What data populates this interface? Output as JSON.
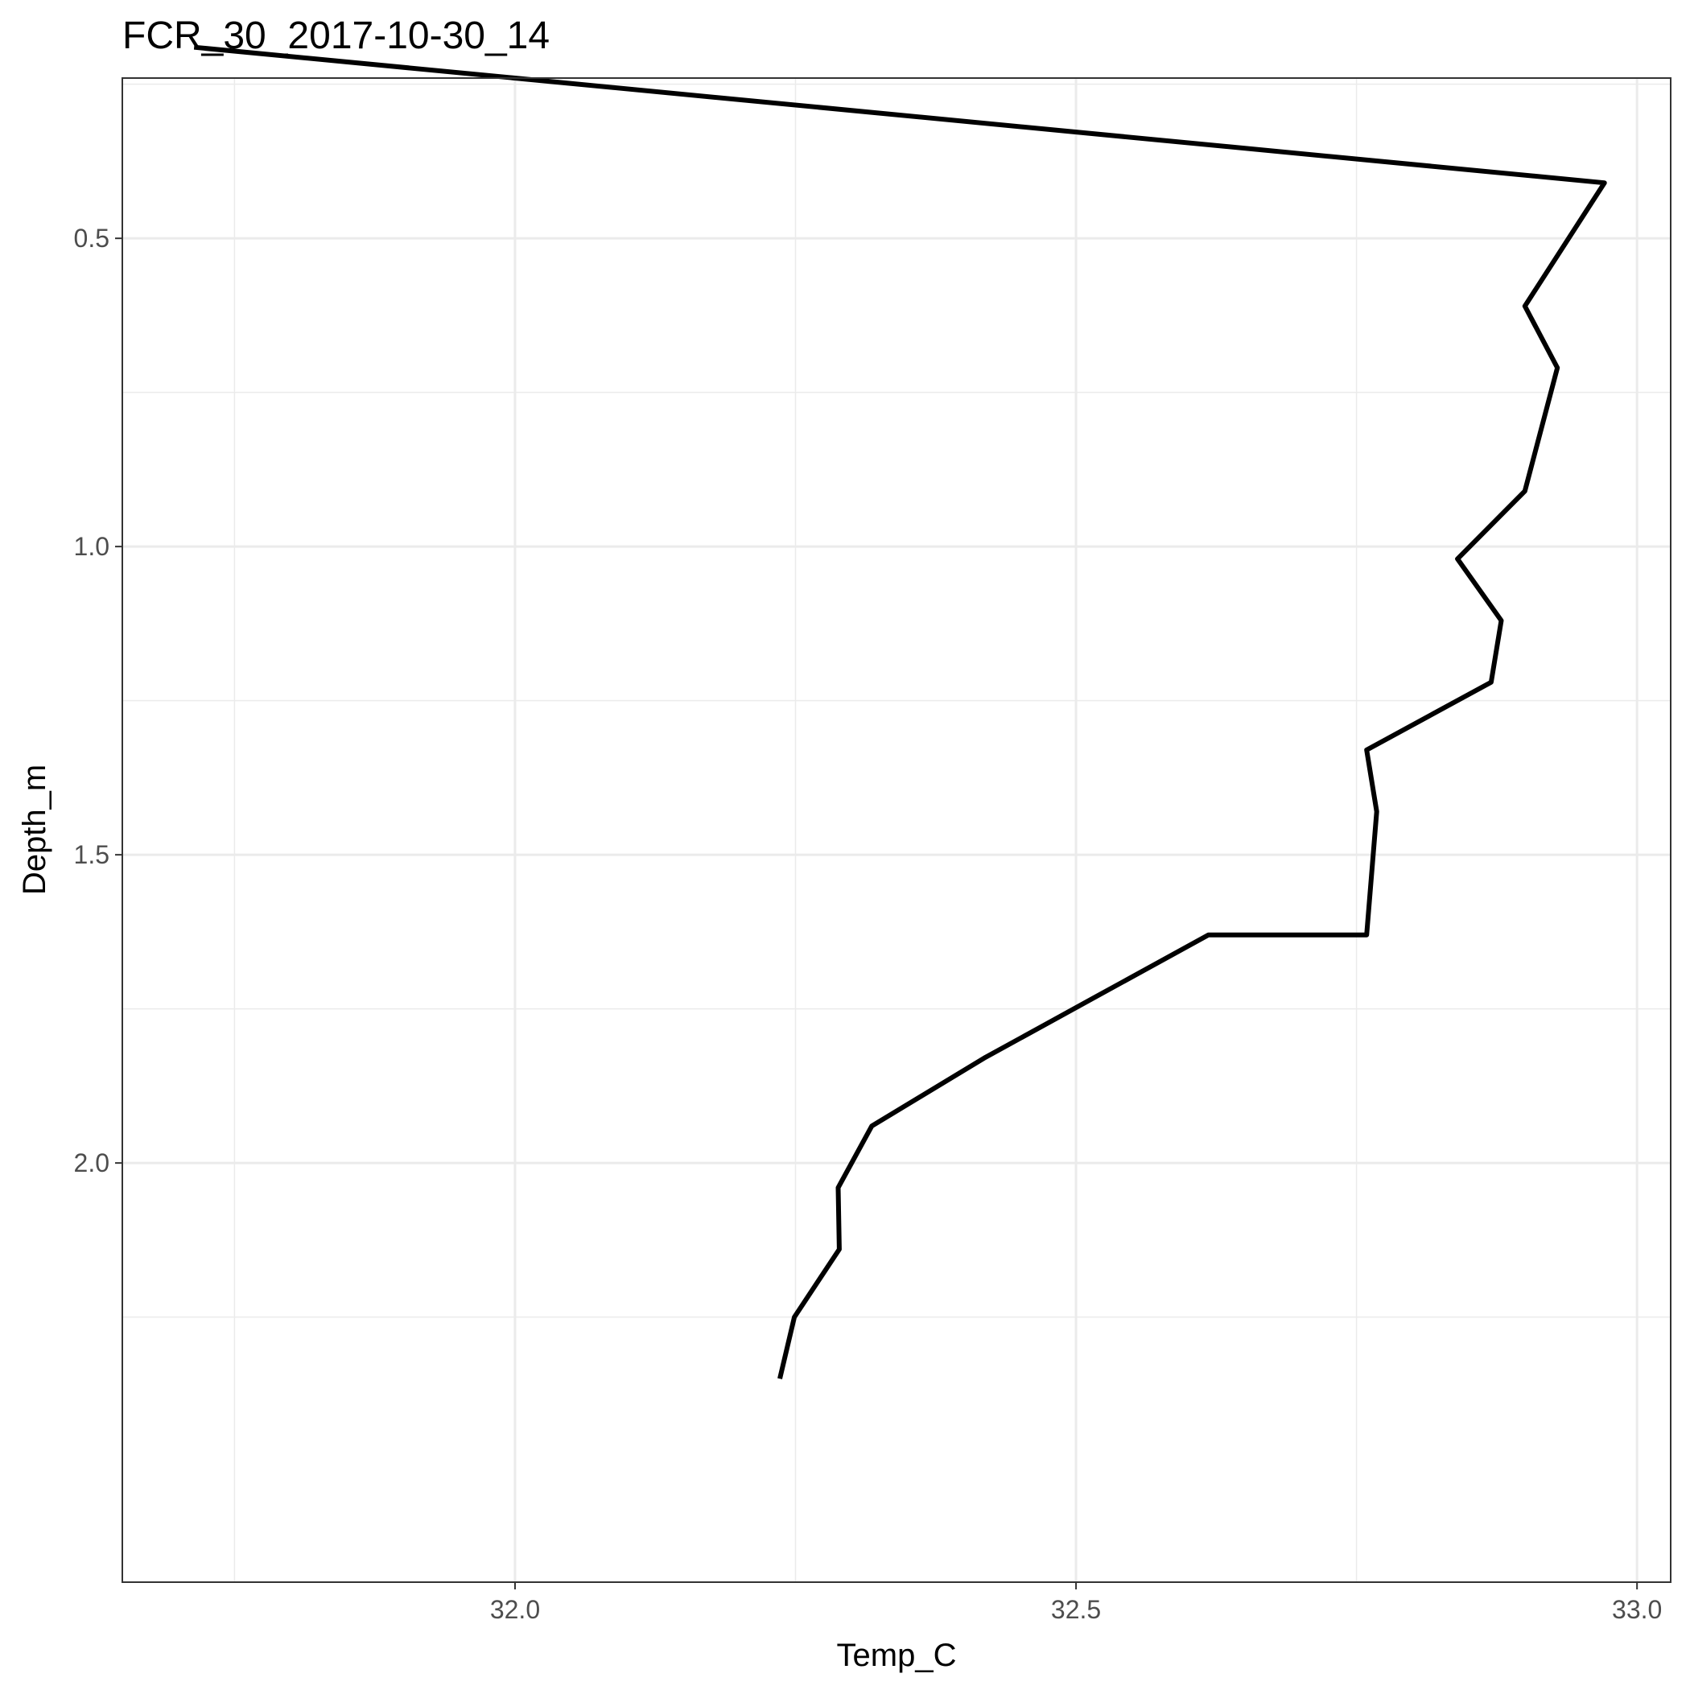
{
  "chart_data": {
    "type": "line",
    "title": "FCR_30_2017-10-30_14",
    "xlabel": "Temp_C",
    "ylabel": "Depth_m",
    "xlim": [
      31.65,
      33.03
    ],
    "ylim": [
      0.24,
      2.68
    ],
    "y_reversed": true,
    "grid": true,
    "legend": "none",
    "x_ticks": [
      {
        "value": 32.0,
        "label": "32.0"
      },
      {
        "value": 32.5,
        "label": "32.5"
      },
      {
        "value": 33.0,
        "label": "33.0"
      }
    ],
    "x_minor_ticks": [
      31.75,
      32.25,
      32.75
    ],
    "y_ticks": [
      {
        "value": 0.5,
        "label": "0.5"
      },
      {
        "value": 1.0,
        "label": "1.0"
      },
      {
        "value": 1.5,
        "label": "1.5"
      },
      {
        "value": 2.0,
        "label": "2.0"
      }
    ],
    "y_minor_ticks": [
      0.25,
      0.75,
      1.25,
      1.75,
      2.25
    ],
    "series": [
      {
        "color": "#000000",
        "x": [
          31.714,
          32.971,
          32.9,
          32.929,
          32.9,
          32.84,
          32.879,
          32.87,
          32.759,
          32.768,
          32.759,
          32.618,
          32.518,
          32.418,
          32.318,
          32.318,
          32.288,
          32.289,
          32.249,
          32.236
        ],
        "y": [
          0.19,
          0.41,
          0.61,
          0.71,
          0.91,
          1.02,
          1.12,
          1.22,
          1.33,
          1.43,
          1.63,
          1.63,
          1.73,
          1.83,
          1.94,
          1.94,
          2.04,
          2.14,
          2.25,
          2.35
        ]
      }
    ]
  }
}
